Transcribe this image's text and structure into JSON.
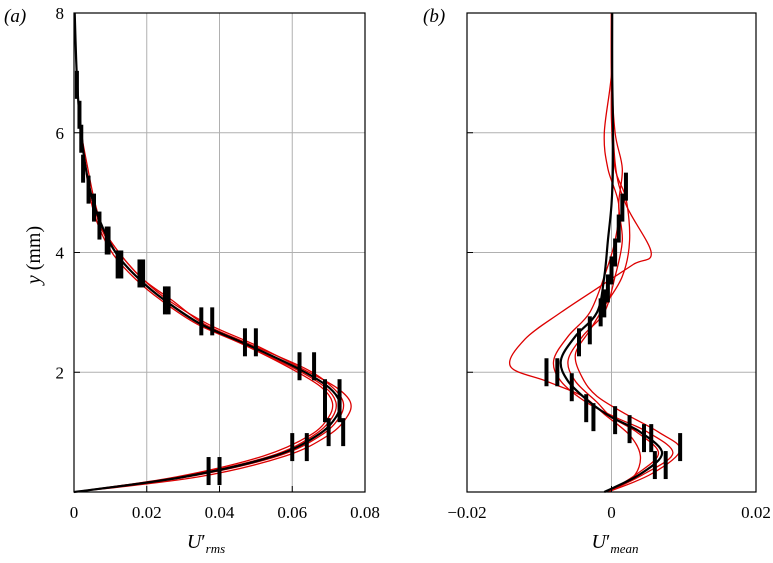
{
  "chart_data": [
    {
      "type": "line",
      "panel_label": "(a)",
      "xlabel": "U′rms",
      "ylabel": "y (mm)",
      "xlim": [
        0,
        0.08
      ],
      "ylim": [
        0,
        8
      ],
      "xticks": [
        0,
        0.02,
        0.04,
        0.06,
        0.08
      ],
      "xtick_labels": [
        "0",
        "0.02",
        "0.04",
        "0.06",
        "0.08"
      ],
      "yticks": [
        2,
        4,
        6,
        8
      ],
      "ytick_labels": [
        "2",
        "4",
        "6",
        "8"
      ],
      "grid": true,
      "colors": {
        "mean": "#000000",
        "realizations": "#dd0000"
      },
      "series": [
        {
          "role": "mean",
          "x": [
            0.0,
            0.03,
            0.055,
            0.067,
            0.072,
            0.073,
            0.07,
            0.062,
            0.048,
            0.035,
            0.025,
            0.018,
            0.012,
            0.008,
            0.005,
            0.003,
            0.002,
            0.0012,
            0.0006,
            0.0002
          ],
          "y": [
            0.0,
            0.25,
            0.6,
            0.95,
            1.25,
            1.5,
            1.75,
            2.05,
            2.45,
            2.8,
            3.2,
            3.55,
            3.95,
            4.4,
            4.9,
            5.5,
            6.0,
            6.5,
            7.2,
            8.0
          ]
        },
        {
          "role": "realization",
          "x": [
            0.0,
            0.034,
            0.058,
            0.07,
            0.075,
            0.076,
            0.072,
            0.063,
            0.05,
            0.037,
            0.026,
            0.019,
            0.013,
            0.008,
            0.005,
            0.003,
            0.002,
            0.0012,
            0.0006,
            0.0002
          ],
          "y": [
            0.0,
            0.25,
            0.6,
            0.95,
            1.25,
            1.5,
            1.75,
            2.05,
            2.45,
            2.8,
            3.2,
            3.55,
            3.95,
            4.4,
            4.9,
            5.5,
            6.0,
            6.5,
            7.2,
            8.0
          ]
        },
        {
          "role": "realization",
          "x": [
            0.0,
            0.028,
            0.052,
            0.065,
            0.07,
            0.071,
            0.068,
            0.06,
            0.047,
            0.034,
            0.024,
            0.017,
            0.011,
            0.007,
            0.0045,
            0.003,
            0.002,
            0.0012,
            0.0006,
            0.0002
          ],
          "y": [
            0.0,
            0.25,
            0.6,
            0.95,
            1.25,
            1.5,
            1.75,
            2.05,
            2.45,
            2.8,
            3.2,
            3.55,
            3.95,
            4.4,
            4.9,
            5.5,
            6.0,
            6.5,
            7.2,
            8.0
          ]
        },
        {
          "role": "realization",
          "x": [
            0.0,
            0.031,
            0.056,
            0.068,
            0.073,
            0.074,
            0.071,
            0.064,
            0.049,
            0.036,
            0.027,
            0.019,
            0.013,
            0.008,
            0.0055,
            0.0035,
            0.002,
            0.0012,
            0.0006,
            0.0002
          ],
          "y": [
            0.0,
            0.25,
            0.6,
            0.95,
            1.25,
            1.5,
            1.75,
            2.05,
            2.45,
            2.8,
            3.2,
            3.55,
            3.95,
            4.4,
            4.9,
            5.5,
            6.0,
            6.5,
            7.2,
            8.0
          ]
        },
        {
          "role": "realization",
          "x": [
            0.0,
            0.029,
            0.054,
            0.066,
            0.071,
            0.072,
            0.069,
            0.061,
            0.047,
            0.035,
            0.025,
            0.018,
            0.012,
            0.0075,
            0.005,
            0.003,
            0.002,
            0.0012,
            0.0006,
            0.0002
          ],
          "y": [
            0.0,
            0.25,
            0.6,
            0.95,
            1.25,
            1.5,
            1.75,
            2.05,
            2.45,
            2.8,
            3.2,
            3.55,
            3.95,
            4.4,
            4.9,
            5.5,
            6.0,
            6.5,
            7.2,
            8.0
          ]
        }
      ],
      "error_bars": [
        {
          "y": 0.35,
          "x": [
            0.037,
            0.04
          ]
        },
        {
          "y": 0.75,
          "x": [
            0.06,
            0.064
          ]
        },
        {
          "y": 1.0,
          "x": [
            0.07,
            0.074
          ]
        },
        {
          "y": 1.4,
          "x": [
            0.069,
            0.073
          ]
        },
        {
          "y": 1.65,
          "x": [
            0.069,
            0.073
          ]
        },
        {
          "y": 2.1,
          "x": [
            0.062,
            0.066
          ]
        },
        {
          "y": 2.5,
          "x": [
            0.047,
            0.05
          ]
        },
        {
          "y": 2.85,
          "x": [
            0.035,
            0.038
          ]
        },
        {
          "y": 3.2,
          "x": [
            0.025,
            0.026
          ]
        },
        {
          "y": 3.65,
          "x": [
            0.018,
            0.019
          ]
        },
        {
          "y": 3.8,
          "x": [
            0.012,
            0.013
          ]
        },
        {
          "y": 4.2,
          "x": [
            0.009,
            0.0095
          ]
        },
        {
          "y": 4.45,
          "x": [
            0.007
          ]
        },
        {
          "y": 4.75,
          "x": [
            0.0055
          ]
        },
        {
          "y": 5.05,
          "x": [
            0.004
          ]
        },
        {
          "y": 5.4,
          "x": [
            0.0025
          ]
        },
        {
          "y": 5.9,
          "x": [
            0.002
          ]
        },
        {
          "y": 6.3,
          "x": [
            0.0015
          ]
        },
        {
          "y": 6.8,
          "x": [
            0.0008
          ]
        }
      ]
    },
    {
      "type": "line",
      "panel_label": "(b)",
      "xlabel": "U′mean",
      "ylabel": "",
      "xlim": [
        -0.02,
        0.02
      ],
      "ylim": [
        0,
        8
      ],
      "xticks": [
        -0.02,
        0,
        0.02
      ],
      "xtick_labels": [
        "−0.02",
        "0",
        "0.02"
      ],
      "yticks": [
        2,
        4,
        6,
        8
      ],
      "ytick_labels": [],
      "grid": true,
      "colors": {
        "mean": "#000000",
        "realizations": "#dd0000"
      },
      "series": [
        {
          "role": "mean",
          "x": [
            -0.001,
            0.004,
            0.007,
            0.004,
            0.0,
            -0.003,
            -0.006,
            -0.007,
            -0.005,
            -0.002,
            -0.001,
            -0.0005,
            0.0,
            0.0002,
            0.0002,
            0.0001,
            0.0001
          ],
          "y": [
            0.0,
            0.3,
            0.65,
            1.0,
            1.25,
            1.5,
            1.85,
            2.2,
            2.6,
            3.0,
            3.6,
            4.2,
            4.8,
            5.4,
            6.2,
            7.0,
            8.0
          ]
        },
        {
          "role": "realization",
          "x": [
            -0.0005,
            0.0055,
            0.0095,
            0.0065,
            0.002,
            -0.002,
            -0.004,
            -0.005,
            -0.003,
            -0.001,
            0.0015,
            0.0025,
            0.002,
            0.0005,
            0.0,
            0.0,
            0.0
          ],
          "y": [
            0.0,
            0.3,
            0.7,
            1.0,
            1.3,
            1.6,
            1.9,
            2.3,
            2.7,
            3.1,
            3.6,
            4.2,
            4.9,
            5.4,
            6.2,
            7.0,
            8.0
          ]
        },
        {
          "role": "realization",
          "x": [
            -0.0005,
            0.003,
            0.004,
            0.0025,
            -0.001,
            -0.004,
            -0.009,
            -0.014,
            -0.012,
            -0.007,
            -0.002,
            0.003,
            0.0055,
            0.002,
            0.0005,
            0.0,
            0.0
          ],
          "y": [
            0.0,
            0.25,
            0.6,
            0.95,
            1.3,
            1.6,
            1.85,
            2.1,
            2.55,
            3.0,
            3.4,
            3.8,
            4.0,
            4.8,
            5.5,
            7.0,
            8.0
          ]
        },
        {
          "role": "realization",
          "x": [
            -0.0005,
            0.0045,
            0.0085,
            0.005,
            0.0005,
            -0.0035,
            -0.007,
            -0.008,
            -0.006,
            -0.003,
            -0.001,
            0.0005,
            0.001,
            -0.0005,
            -0.001,
            0.0,
            0.0
          ],
          "y": [
            0.0,
            0.3,
            0.65,
            1.0,
            1.25,
            1.5,
            1.85,
            2.2,
            2.6,
            3.0,
            3.6,
            4.2,
            4.8,
            5.4,
            6.0,
            7.0,
            8.0
          ]
        },
        {
          "role": "realization",
          "x": [
            -0.0005,
            0.0035,
            0.0065,
            0.0035,
            0.0,
            -0.002,
            -0.005,
            -0.006,
            -0.004,
            -0.001,
            0.0005,
            0.0015,
            0.001,
            0.0015,
            0.0005,
            0.0,
            0.0
          ],
          "y": [
            0.0,
            0.3,
            0.65,
            1.0,
            1.25,
            1.5,
            1.85,
            2.2,
            2.6,
            3.0,
            3.6,
            4.2,
            4.8,
            5.4,
            6.0,
            7.0,
            8.0
          ]
        }
      ],
      "error_bars": [
        {
          "y": 0.45,
          "x": [
            0.006,
            0.0075
          ]
        },
        {
          "y": 0.75,
          "x": [
            0.0095
          ]
        },
        {
          "y": 0.9,
          "x": [
            0.0045,
            0.0055
          ]
        },
        {
          "y": 1.05,
          "x": [
            0.0025
          ]
        },
        {
          "y": 1.2,
          "x": [
            0.0005
          ]
        },
        {
          "y": 1.25,
          "x": [
            -0.0025
          ]
        },
        {
          "y": 1.4,
          "x": [
            -0.0035
          ]
        },
        {
          "y": 1.75,
          "x": [
            -0.0055
          ]
        },
        {
          "y": 2.0,
          "x": [
            -0.009,
            -0.0075
          ]
        },
        {
          "y": 2.5,
          "x": [
            -0.0045
          ]
        },
        {
          "y": 2.7,
          "x": [
            -0.003
          ]
        },
        {
          "y": 3.0,
          "x": [
            -0.0015
          ]
        },
        {
          "y": 3.15,
          "x": [
            -0.001
          ]
        },
        {
          "y": 3.4,
          "x": [
            -0.0005
          ]
        },
        {
          "y": 3.7,
          "x": [
            0.0
          ]
        },
        {
          "y": 4.0,
          "x": [
            0.0005
          ]
        },
        {
          "y": 4.4,
          "x": [
            0.001
          ]
        },
        {
          "y": 4.75,
          "x": [
            0.0015
          ]
        },
        {
          "y": 5.1,
          "x": [
            0.002
          ]
        }
      ]
    }
  ]
}
